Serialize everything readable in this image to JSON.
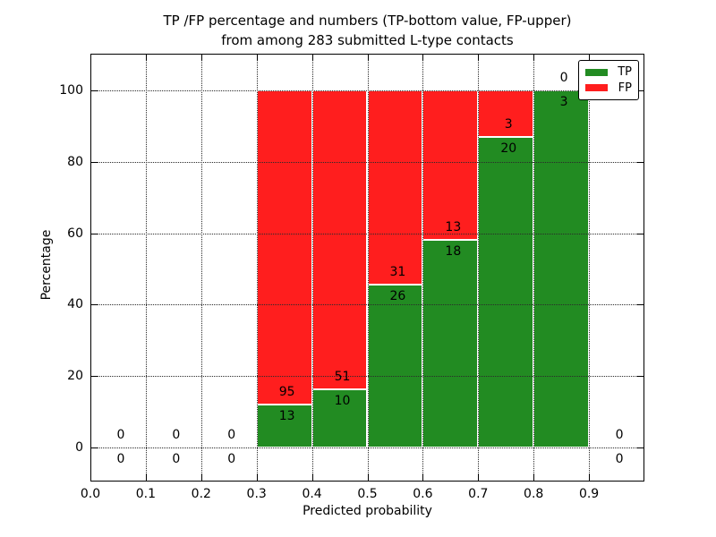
{
  "chart_data": {
    "type": "bar",
    "stacked": true,
    "normalized_to_percent": true,
    "title_lines": [
      "TP /FP percentage and numbers (TP-bottom value, FP-upper)",
      "from among 283 submitted L-type contacts"
    ],
    "xlabel": "Predicted probability",
    "ylabel": "Percentage",
    "xlim": [
      0.0,
      1.0
    ],
    "ylim": [
      -9.5,
      110.3
    ],
    "xtick_values": [
      0.0,
      0.1,
      0.2,
      0.3,
      0.4,
      0.5,
      0.6,
      0.7,
      0.8,
      0.9
    ],
    "xtick_labels": [
      "0.0",
      "0.1",
      "0.2",
      "0.3",
      "0.4",
      "0.5",
      "0.6",
      "0.7",
      "0.8",
      "0.9"
    ],
    "ytick_values": [
      0,
      20,
      40,
      60,
      80,
      100
    ],
    "ytick_labels": [
      "0",
      "20",
      "40",
      "60",
      "80",
      "100"
    ],
    "grid": "dotted",
    "total_contacts": 283,
    "colors": {
      "tp": "#228B22",
      "fp": "#FF1E1E"
    },
    "bins": [
      {
        "x0": 0.0,
        "x1": 0.1,
        "tp": 0,
        "fp": 0
      },
      {
        "x0": 0.1,
        "x1": 0.2,
        "tp": 0,
        "fp": 0
      },
      {
        "x0": 0.2,
        "x1": 0.3,
        "tp": 0,
        "fp": 0
      },
      {
        "x0": 0.3,
        "x1": 0.4,
        "tp": 13,
        "fp": 95
      },
      {
        "x0": 0.4,
        "x1": 0.5,
        "tp": 10,
        "fp": 51
      },
      {
        "x0": 0.5,
        "x1": 0.6,
        "tp": 26,
        "fp": 31
      },
      {
        "x0": 0.6,
        "x1": 0.7,
        "tp": 18,
        "fp": 13
      },
      {
        "x0": 0.7,
        "x1": 0.8,
        "tp": 20,
        "fp": 3
      },
      {
        "x0": 0.8,
        "x1": 0.9,
        "tp": 3,
        "fp": 0
      },
      {
        "x0": 0.9,
        "x1": 1.0,
        "tp": 0,
        "fp": 0
      }
    ],
    "legend": {
      "position": "upper right",
      "entries": [
        {
          "label": "TP",
          "color": "#228B22"
        },
        {
          "label": "FP",
          "color": "#FF1E1E"
        }
      ]
    }
  }
}
